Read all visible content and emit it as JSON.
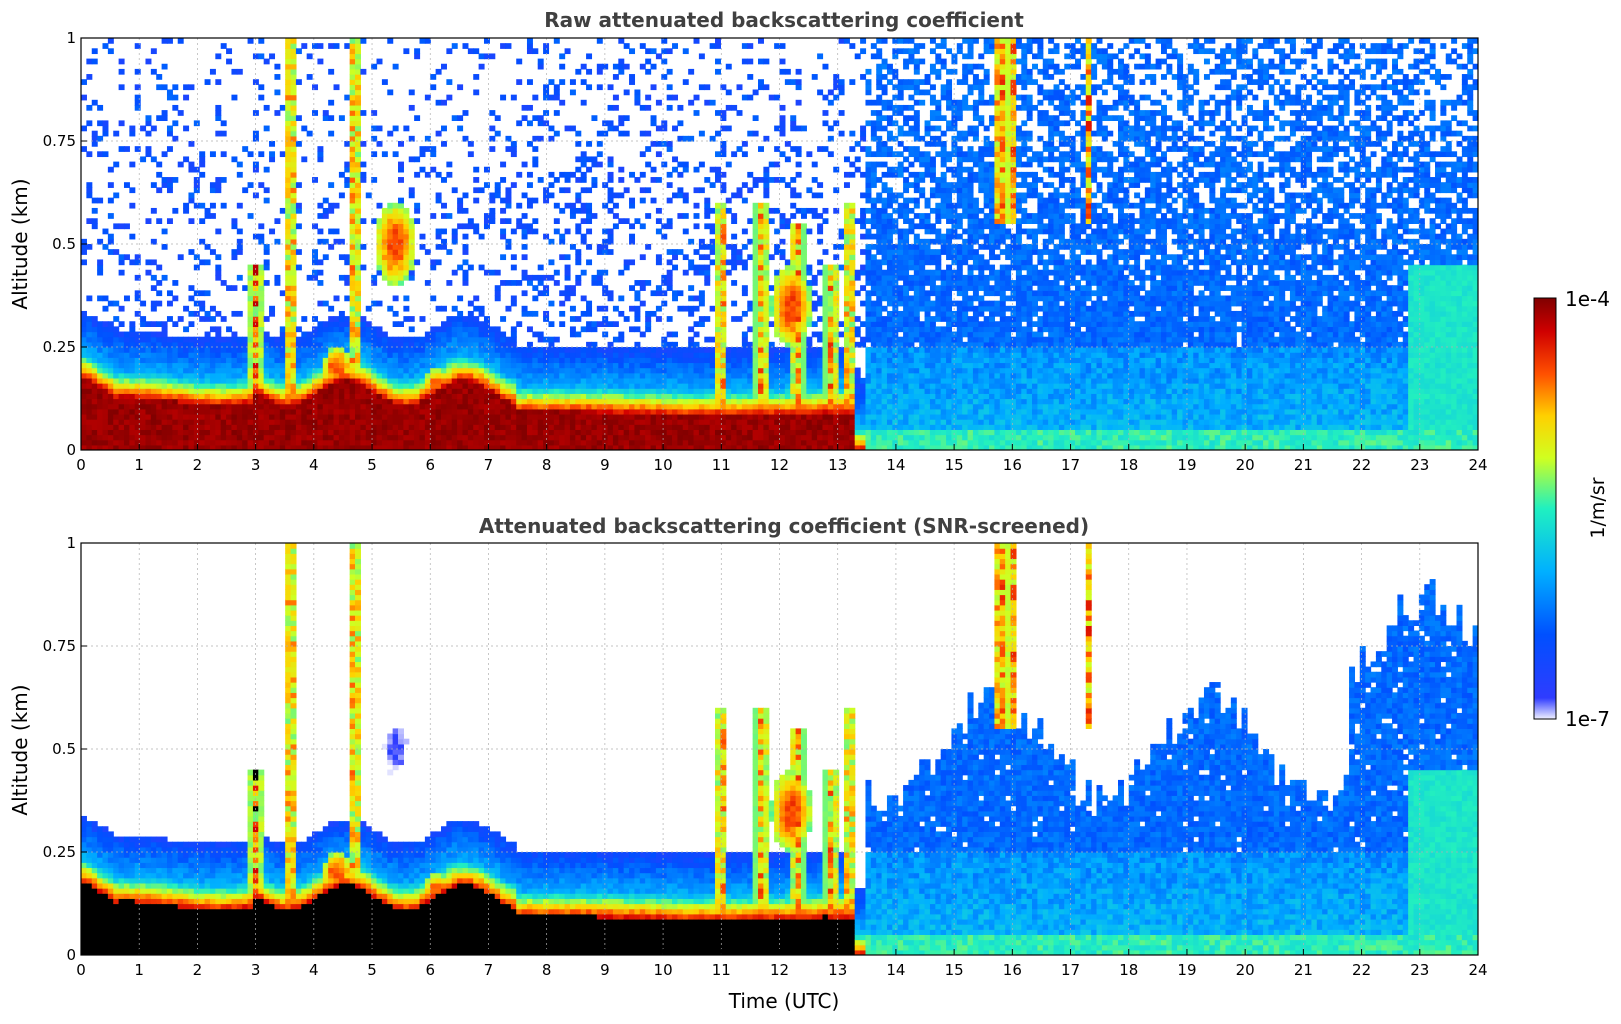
{
  "chart_data": [
    {
      "type": "heatmap",
      "title": "Raw attenuated backscattering coefficient",
      "xlabel": "",
      "ylabel": "Altitude (km)",
      "xlim": [
        0,
        24
      ],
      "ylim": [
        0,
        1
      ],
      "xticks": [
        "0",
        "1",
        "2",
        "3",
        "4",
        "5",
        "6",
        "7",
        "8",
        "9",
        "10",
        "11",
        "12",
        "13",
        "14",
        "15",
        "16",
        "17",
        "18",
        "19",
        "20",
        "21",
        "22",
        "23",
        "24"
      ],
      "yticks": [
        "0",
        "0.25",
        "0.5",
        "0.75",
        "1"
      ],
      "grid": true,
      "screened": false
    },
    {
      "type": "heatmap",
      "title": "Attenuated backscattering coefficient (SNR-screened)",
      "xlabel": "Time (UTC)",
      "ylabel": "Altitude (km)",
      "xlim": [
        0,
        24
      ],
      "ylim": [
        0,
        1
      ],
      "xticks": [
        "0",
        "1",
        "2",
        "3",
        "4",
        "5",
        "6",
        "7",
        "8",
        "9",
        "10",
        "11",
        "12",
        "13",
        "14",
        "15",
        "16",
        "17",
        "18",
        "19",
        "20",
        "21",
        "22",
        "23",
        "24"
      ],
      "yticks": [
        "0",
        "0.25",
        "0.5",
        "0.75",
        "1"
      ],
      "grid": true,
      "screened": true
    }
  ],
  "colorbar": {
    "label": "1/m/sr",
    "max_label": "1e-4",
    "min_label": "1e-7",
    "scale": "log",
    "colormap": "jet"
  },
  "colors": {
    "title": "#404040",
    "grid": "#b0b0b0",
    "saturated": "#000000"
  }
}
